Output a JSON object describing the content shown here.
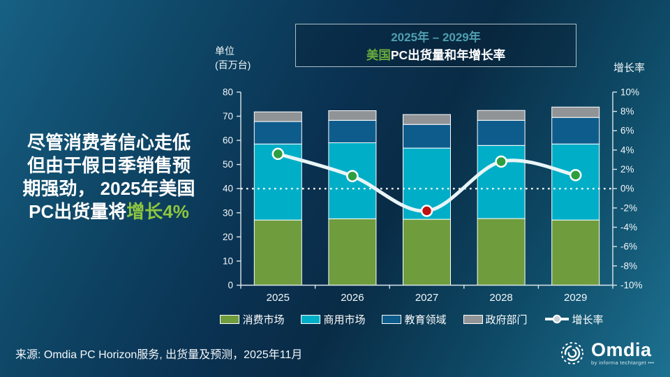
{
  "title_box": {
    "range": "2025年 – 2029年",
    "line2_highlight": "美国",
    "line2_rest": "PC出货量和年增长率"
  },
  "headline": {
    "line1": "尽管消费者信心走低",
    "line2": "但由于假日季销售预",
    "line3": "期强劲， 2025年美国",
    "line4_white": "PC出货量将",
    "line4_green": "增长4%"
  },
  "chart_data": {
    "type": "bar",
    "subtype": "stacked-bar-with-line",
    "title": "美国PC出货量和年增长率",
    "title_range": "2025年 – 2029年",
    "categories": [
      "2025",
      "2026",
      "2027",
      "2028",
      "2029"
    ],
    "series": [
      {
        "name": "消费市场",
        "color": "#6f9c3c",
        "values": [
          27.0,
          27.5,
          27.3,
          27.6,
          27.0
        ]
      },
      {
        "name": "商用市场",
        "color": "#00aec7",
        "values": [
          31.5,
          31.5,
          29.5,
          30.3,
          31.5
        ]
      },
      {
        "name": "教育领域",
        "color": "#0e5c8c",
        "values": [
          9.3,
          9.3,
          9.8,
          10.4,
          11.0
        ]
      },
      {
        "name": "政府部门",
        "color": "#909497",
        "values": [
          4.0,
          4.0,
          4.1,
          4.1,
          4.3
        ]
      }
    ],
    "line_series": {
      "name": "增长率",
      "values_pct": [
        3.6,
        1.3,
        -2.3,
        2.8,
        1.4
      ],
      "line_color": "#e8f5f7",
      "marker_colors": [
        "#2f9e41",
        "#2f9e41",
        "#c01010",
        "#2f9e41",
        "#2f9e41"
      ]
    },
    "left_axis": {
      "label_line1": "单位",
      "label_line2": "(百万台)",
      "min": 0,
      "max": 80,
      "step": 10
    },
    "right_axis": {
      "label": "增长率",
      "min": -10,
      "max": 10,
      "step": 2,
      "suffix": "%"
    },
    "zero_line_left_value": 40,
    "grid": "dotted-zero-line-only",
    "legend_position": "bottom"
  },
  "source": {
    "text": "来源: Omdia PC Horizon服务, 出货量及预测，2025年11月"
  },
  "logo": {
    "name": "Omdia",
    "tagline": "by informa techtarget •••"
  }
}
